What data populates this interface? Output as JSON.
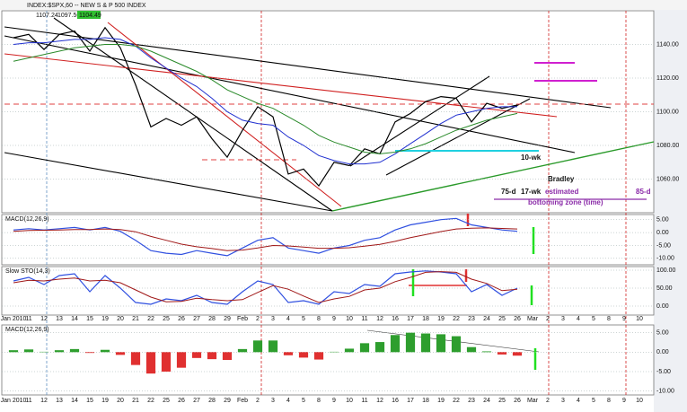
{
  "chart_data": [
    {
      "type": "line",
      "title": "INDEX:$SPX,60 -- NEW S & P 500 INDEX",
      "header_values": [
        "1107.24",
        "1097.56",
        "1104.49"
      ],
      "categories": [
        "Jan 2010",
        "11",
        "12",
        "13",
        "14",
        "15",
        "19",
        "20",
        "21",
        "22",
        "25",
        "26",
        "27",
        "28",
        "29",
        "Feb",
        "2",
        "3",
        "4",
        "5",
        "8",
        "9",
        "10",
        "11",
        "12",
        "16",
        "17",
        "18",
        "19",
        "22",
        "23",
        "24",
        "25",
        "26",
        "Mar",
        "2",
        "3",
        "4",
        "5",
        "8",
        "9",
        "10"
      ],
      "series": [
        {
          "color": "#000000",
          "values": [
            1144,
            1146,
            1137,
            1146,
            1148,
            1136,
            1150,
            1138,
            1116,
            1091,
            1096,
            1092,
            1097,
            1084,
            1073,
            1089,
            1103,
            1097,
            1063,
            1066,
            1056,
            1070,
            1068,
            1078,
            1075,
            1094,
            1099,
            1106,
            1109,
            1108,
            1094,
            1105,
            1102,
            1104,
            null,
            null,
            null,
            null,
            null,
            null,
            null,
            null
          ]
        },
        {
          "color": "#2030d0",
          "values": [
            1140,
            1141,
            1141,
            1142,
            1143,
            1143,
            1144,
            1143,
            1139,
            1132,
            1126,
            1120,
            1115,
            1108,
            1100,
            1095,
            1093,
            1092,
            1085,
            1080,
            1074,
            1071,
            1069,
            1069,
            1070,
            1075,
            1081,
            1087,
            1093,
            1098,
            1100,
            1102,
            1103,
            1103,
            null,
            null,
            null,
            null,
            null,
            null,
            null,
            null
          ]
        },
        {
          "color": "#2a8a2a",
          "values": [
            1130,
            1132,
            1134,
            1136,
            1138,
            1139,
            1140,
            1140,
            1139,
            1136,
            1132,
            1128,
            1124,
            1119,
            1113,
            1109,
            1105,
            1102,
            1097,
            1092,
            1086,
            1082,
            1079,
            1076,
            1075,
            1076,
            1078,
            1081,
            1085,
            1089,
            1092,
            1095,
            1097,
            1099,
            null,
            null,
            null,
            null,
            null,
            null,
            null,
            null
          ]
        }
      ],
      "ylim": [
        1040,
        1160
      ],
      "yticks": [
        {
          "value": 1140,
          "label": "1140.00"
        },
        {
          "value": 1120,
          "label": "1120.00"
        },
        {
          "value": 1100,
          "label": "1100.00"
        },
        {
          "value": 1080,
          "label": "1080.00"
        },
        {
          "value": 1060,
          "label": "1060.00"
        }
      ],
      "grid": true,
      "annotations": [
        "10-wk",
        "Bradley",
        "75-d",
        "17-wk",
        "estimated",
        "bottoming zone (time)",
        "85-d"
      ]
    },
    {
      "type": "line",
      "title": "MACD(12,26,9)",
      "series": [
        {
          "color": "#3050e0",
          "values": [
            1,
            1.5,
            1,
            1.5,
            2,
            1,
            2,
            0.5,
            -3,
            -7,
            -8,
            -8.5,
            -7,
            -8,
            -9,
            -6,
            -3,
            -2,
            -6,
            -7,
            -8,
            -6,
            -5,
            -3,
            -2,
            1,
            3,
            4,
            5,
            5.5,
            3,
            2,
            1,
            0.5,
            null,
            null,
            null,
            null,
            null,
            null,
            null,
            null
          ]
        },
        {
          "color": "#a01818",
          "values": [
            0.5,
            0.8,
            0.9,
            1,
            1.2,
            1.2,
            1.4,
            1.2,
            0.3,
            -1.5,
            -3,
            -4.5,
            -5.5,
            -6.2,
            -7,
            -6.8,
            -6,
            -5,
            -5.2,
            -5.6,
            -6.1,
            -6.1,
            -5.9,
            -5.3,
            -4.6,
            -3.4,
            -2,
            -0.8,
            0.4,
            1.4,
            1.7,
            1.8,
            1.6,
            1.4,
            null,
            null,
            null,
            null,
            null,
            null,
            null,
            null
          ]
        }
      ],
      "ylim": [
        -12.5,
        7
      ],
      "yticks": [
        {
          "value": 5,
          "label": "5.00"
        },
        {
          "value": 0,
          "label": "0.00"
        },
        {
          "value": -5,
          "label": "-5.00"
        },
        {
          "value": -10,
          "label": "-10.00"
        }
      ],
      "grid": true
    },
    {
      "type": "line",
      "title": "Slow STO(14,3)",
      "series": [
        {
          "color": "#3050e0",
          "values": [
            70,
            80,
            60,
            85,
            90,
            40,
            85,
            50,
            10,
            5,
            20,
            15,
            30,
            10,
            5,
            40,
            70,
            60,
            10,
            15,
            5,
            40,
            35,
            60,
            55,
            90,
            95,
            98,
            95,
            90,
            40,
            60,
            30,
            50,
            null,
            null,
            null,
            null,
            null,
            null,
            null,
            null
          ]
        },
        {
          "color": "#a01818",
          "values": [
            65,
            72,
            70,
            75,
            78,
            70,
            72,
            65,
            45,
            25,
            12,
            13,
            22,
            18,
            15,
            18,
            38,
            57,
            47,
            28,
            10,
            20,
            27,
            45,
            50,
            68,
            80,
            94,
            96,
            94,
            75,
            63,
            43,
            47,
            null,
            null,
            null,
            null,
            null,
            null,
            null,
            null
          ]
        }
      ],
      "ylim": [
        -25,
        110
      ],
      "yticks": [
        {
          "value": 100,
          "label": "100.00"
        },
        {
          "value": 50,
          "label": "50.00"
        },
        {
          "value": 0,
          "label": "0.00"
        }
      ],
      "grid": true
    },
    {
      "type": "bar",
      "title": "MACD(12,26,9)",
      "values": [
        0.5,
        0.7,
        0.1,
        0.5,
        0.8,
        -0.2,
        0.6,
        -0.7,
        -3.3,
        -5.5,
        -5,
        -4,
        -1.5,
        -1.8,
        -2,
        0.8,
        3,
        3,
        -0.8,
        -1.4,
        -1.9,
        0.1,
        0.9,
        2.3,
        2.6,
        4.4,
        5,
        4.8,
        4.6,
        4.1,
        1.3,
        0.2,
        -0.6,
        -0.9,
        null,
        null,
        null,
        null,
        null,
        null,
        null,
        null
      ],
      "up_color": "#2e9e2e",
      "down_color": "#e03030",
      "ylim": [
        -11,
        7
      ],
      "yticks": [
        {
          "value": 5,
          "label": "5.00"
        },
        {
          "value": 0,
          "label": "0.00"
        },
        {
          "value": -5,
          "label": "-5.00"
        },
        {
          "value": -10,
          "label": "-10.00"
        }
      ],
      "grid": true
    }
  ]
}
